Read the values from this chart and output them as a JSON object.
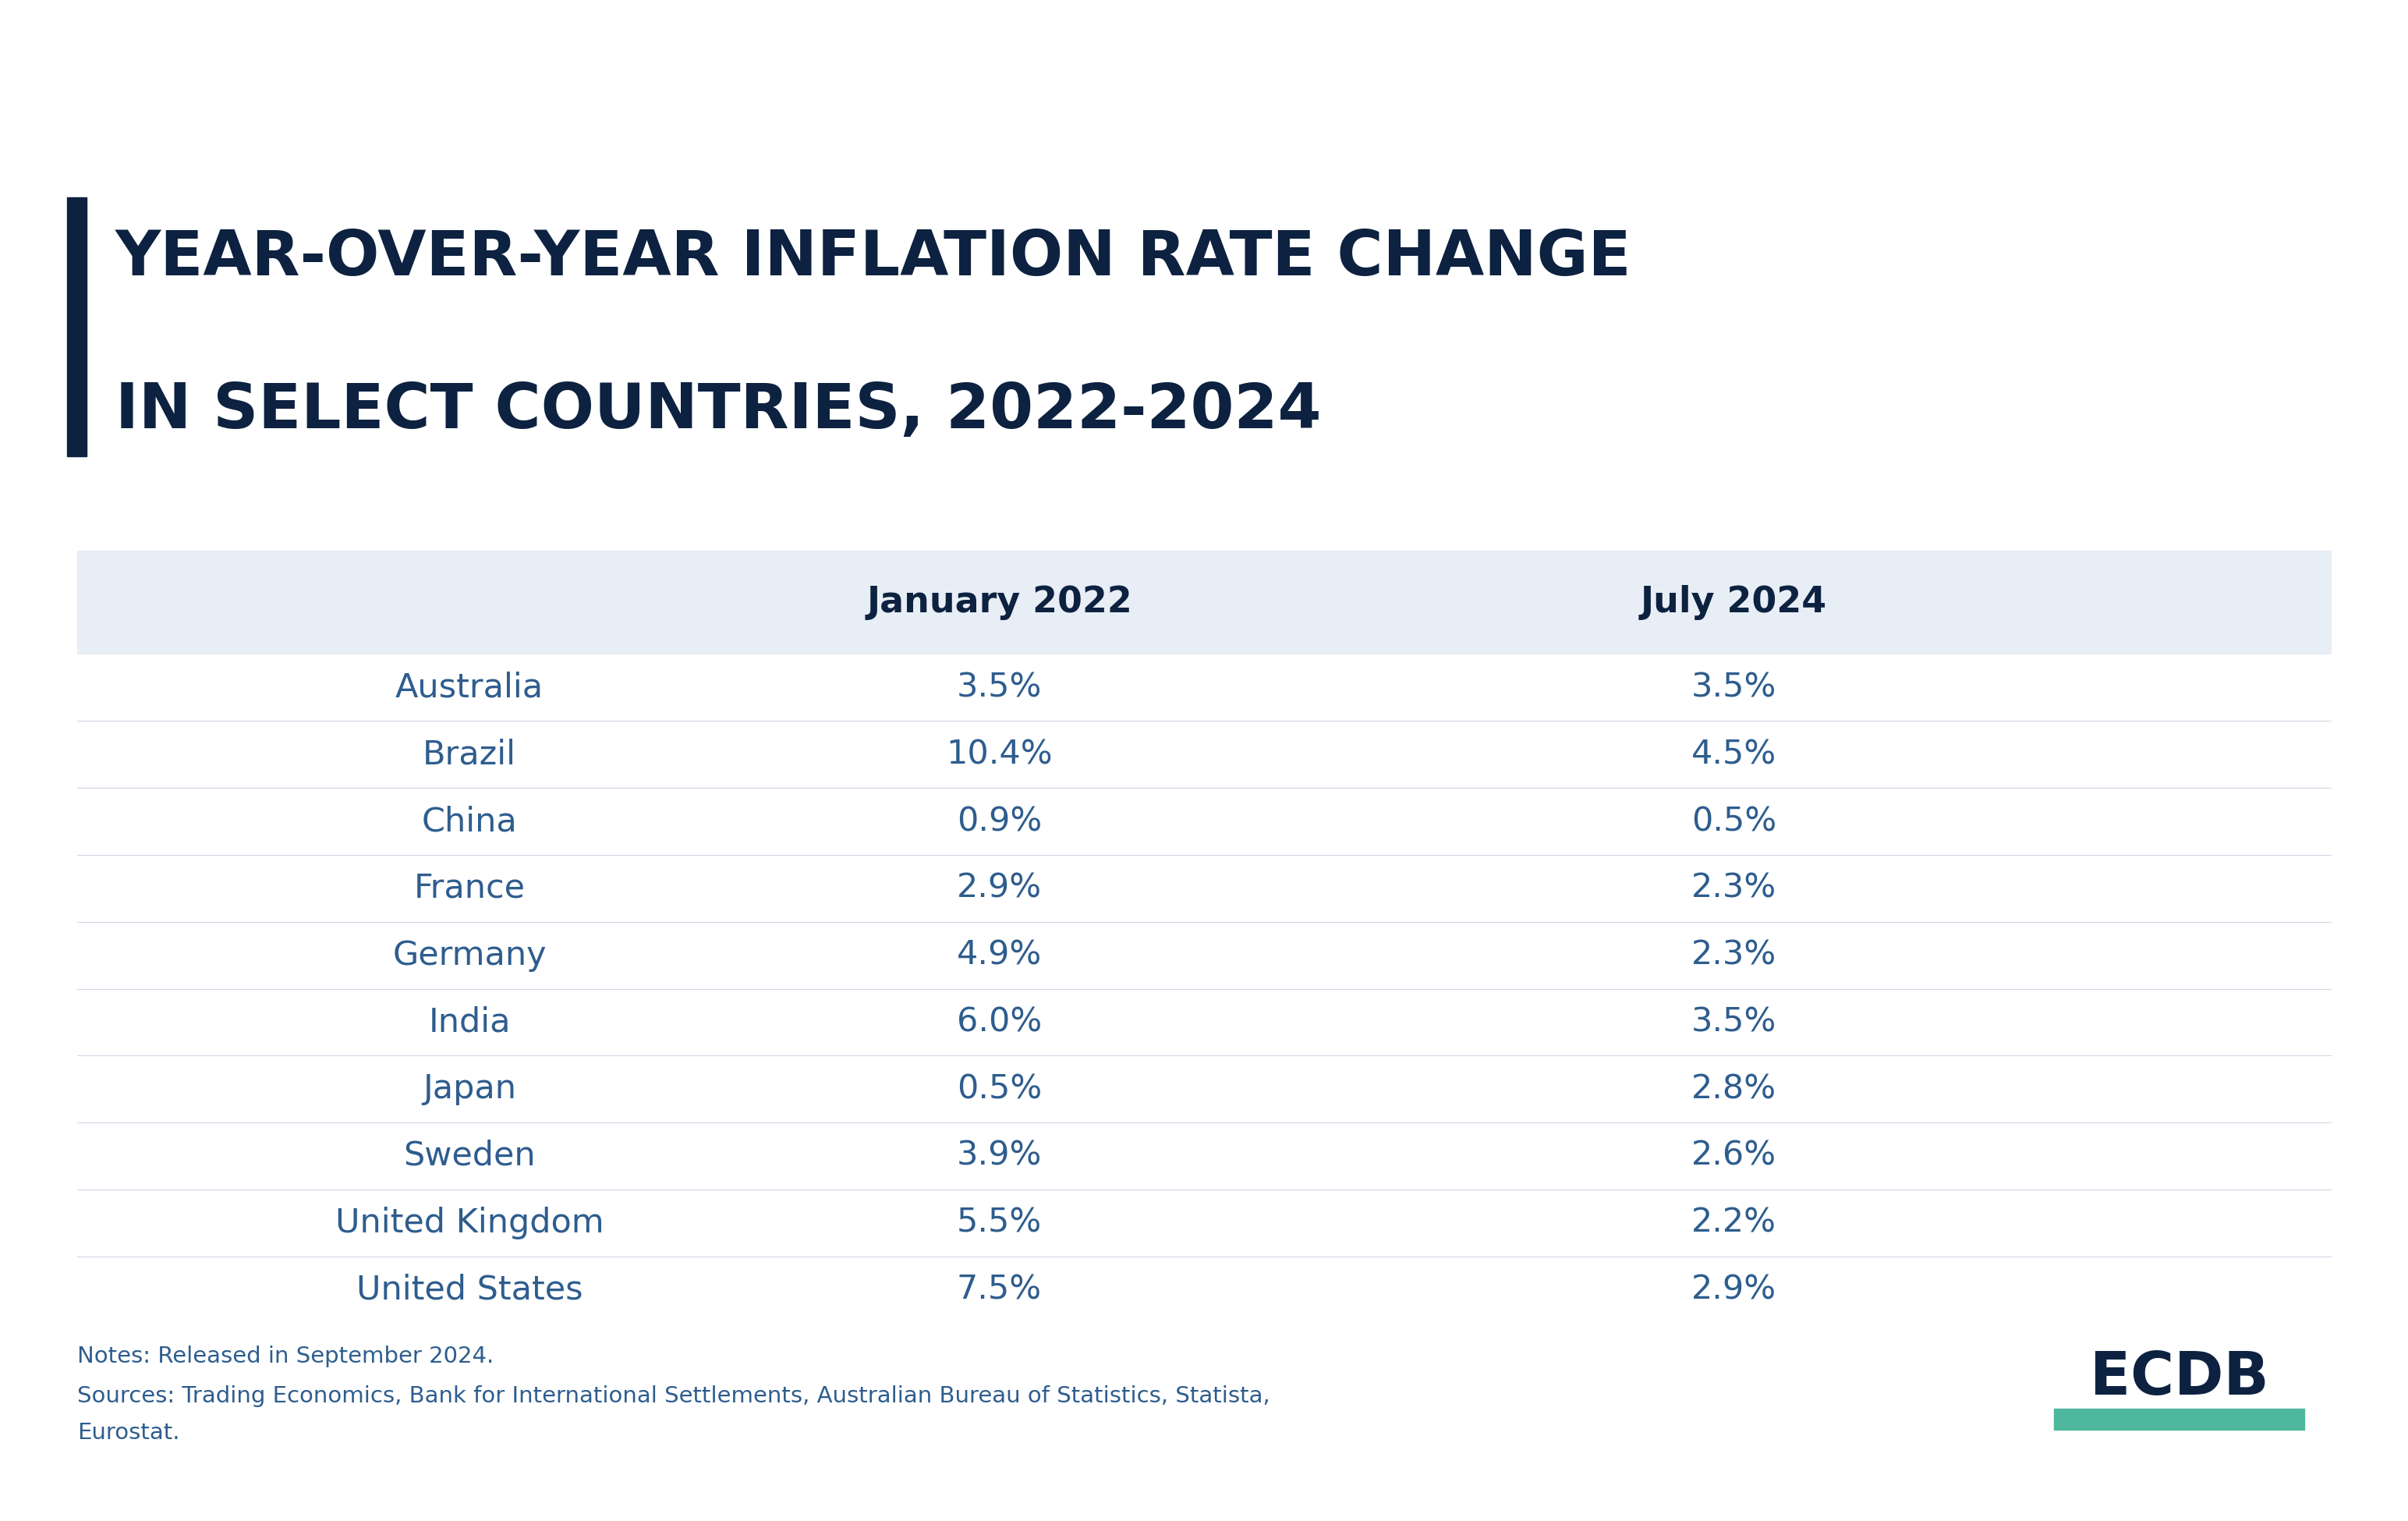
{
  "title_line1": "YEAR-OVER-YEAR INFLATION RATE CHANGE",
  "title_line2": "IN SELECT COUNTRIES, 2022-2024",
  "title_color": "#0d2240",
  "accent_bar_color": "#0d2240",
  "col_headers": [
    "January 2022",
    "July 2024"
  ],
  "col_header_color": "#0d2240",
  "header_bg_color": "#e8eef5",
  "countries": [
    "Australia",
    "Brazil",
    "China",
    "France",
    "Germany",
    "India",
    "Japan",
    "Sweden",
    "United Kingdom",
    "United States"
  ],
  "jan_2022": [
    "3.5%",
    "10.4%",
    "0.9%",
    "2.9%",
    "4.9%",
    "6.0%",
    "0.5%",
    "3.9%",
    "5.5%",
    "7.5%"
  ],
  "jul_2024": [
    "3.5%",
    "4.5%",
    "0.5%",
    "2.3%",
    "2.3%",
    "3.5%",
    "2.8%",
    "2.6%",
    "2.2%",
    "2.9%"
  ],
  "data_text_color": "#2e5d8e",
  "country_text_color": "#2e5d8e",
  "notes_line1": "Notes: Released in September 2024.",
  "notes_line2": "Sources: Trading Economics, Bank for International Settlements, Australian Bureau of Statistics, Statista,",
  "notes_line3": "Eurostat.",
  "notes_color": "#2e5d8e",
  "ecdb_text_color": "#0d2240",
  "ecdb_underline_color": "#4db89e",
  "background_color": "#ffffff",
  "title_fontsize": 58,
  "header_fontsize": 33,
  "data_fontsize": 31,
  "notes_fontsize": 21
}
